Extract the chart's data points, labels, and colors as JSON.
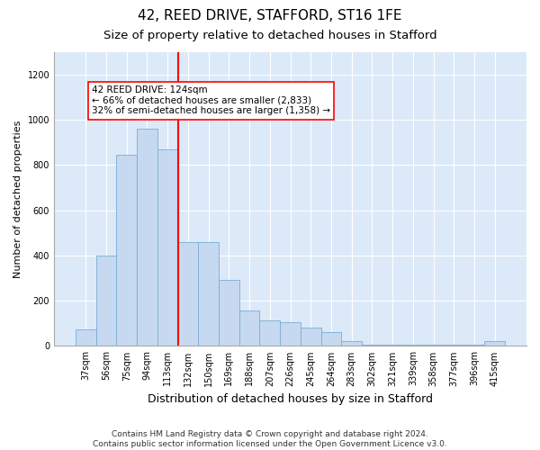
{
  "title1": "42, REED DRIVE, STAFFORD, ST16 1FE",
  "title2": "Size of property relative to detached houses in Stafford",
  "xlabel": "Distribution of detached houses by size in Stafford",
  "ylabel": "Number of detached properties",
  "categories": [
    "37sqm",
    "56sqm",
    "75sqm",
    "94sqm",
    "113sqm",
    "132sqm",
    "150sqm",
    "169sqm",
    "188sqm",
    "207sqm",
    "226sqm",
    "245sqm",
    "264sqm",
    "283sqm",
    "302sqm",
    "321sqm",
    "339sqm",
    "358sqm",
    "377sqm",
    "396sqm",
    "415sqm"
  ],
  "values": [
    75,
    400,
    845,
    960,
    870,
    460,
    460,
    290,
    155,
    115,
    105,
    80,
    60,
    20,
    5,
    5,
    5,
    5,
    5,
    5,
    20
  ],
  "bar_color": "#c6d9f0",
  "bar_edge_color": "#7aadd4",
  "vline_x_index": 5,
  "vline_color": "red",
  "annotation_text": "42 REED DRIVE: 124sqm\n← 66% of detached houses are smaller (2,833)\n32% of semi-detached houses are larger (1,358) →",
  "annotation_box_color": "white",
  "annotation_box_edge_color": "red",
  "ylim": [
    0,
    1300
  ],
  "yticks": [
    0,
    200,
    400,
    600,
    800,
    1000,
    1200
  ],
  "plot_bg_color": "#dce9f8",
  "fig_bg_color": "#ffffff",
  "footnote": "Contains HM Land Registry data © Crown copyright and database right 2024.\nContains public sector information licensed under the Open Government Licence v3.0.",
  "title1_fontsize": 11,
  "title2_fontsize": 9.5,
  "xlabel_fontsize": 9,
  "ylabel_fontsize": 8,
  "annotation_fontsize": 7.5,
  "footnote_fontsize": 6.5,
  "tick_fontsize": 7
}
